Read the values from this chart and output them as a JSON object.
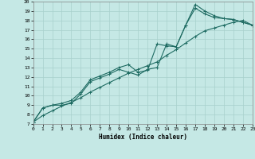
{
  "xlabel": "Humidex (Indice chaleur)",
  "xlim": [
    0,
    23
  ],
  "ylim": [
    7,
    20
  ],
  "xticks": [
    0,
    1,
    2,
    3,
    4,
    5,
    6,
    7,
    8,
    9,
    10,
    11,
    12,
    13,
    14,
    15,
    16,
    17,
    18,
    19,
    20,
    21,
    22,
    23
  ],
  "yticks": [
    7,
    8,
    9,
    10,
    11,
    12,
    13,
    14,
    15,
    16,
    17,
    18,
    19,
    20
  ],
  "background_color": "#c5e8e5",
  "line_color": "#1e6b62",
  "grid_color": "#a8d0cc",
  "line1_x": [
    0,
    1,
    2,
    3,
    4,
    5,
    6,
    7,
    8,
    9,
    10,
    11,
    12,
    13,
    14,
    15,
    16,
    17,
    18,
    19,
    20,
    21,
    22,
    23
  ],
  "line1_y": [
    7.2,
    8.7,
    9.0,
    9.2,
    9.5,
    10.4,
    11.7,
    12.1,
    12.5,
    13.0,
    13.3,
    12.5,
    12.7,
    15.5,
    15.3,
    15.2,
    17.5,
    19.7,
    19.0,
    18.5,
    18.2,
    18.1,
    17.8,
    17.5
  ],
  "line2_x": [
    0,
    1,
    2,
    3,
    4,
    5,
    6,
    7,
    8,
    9,
    10,
    11,
    12,
    13,
    14,
    15,
    16,
    17,
    18,
    19,
    20,
    21,
    22,
    23
  ],
  "line2_y": [
    7.2,
    8.7,
    9.0,
    9.0,
    9.2,
    10.2,
    11.5,
    11.9,
    12.3,
    12.8,
    12.5,
    12.2,
    12.8,
    13.0,
    15.5,
    15.2,
    17.5,
    19.3,
    18.7,
    18.3,
    18.2,
    18.1,
    17.8,
    17.5
  ],
  "line3_x": [
    0,
    1,
    2,
    3,
    4,
    5,
    6,
    7,
    8,
    9,
    10,
    11,
    12,
    13,
    14,
    15,
    16,
    17,
    18,
    19,
    20,
    21,
    22,
    23
  ],
  "line3_y": [
    7.2,
    7.9,
    8.4,
    8.9,
    9.3,
    9.8,
    10.4,
    10.9,
    11.4,
    11.9,
    12.4,
    12.8,
    13.2,
    13.6,
    14.3,
    14.9,
    15.6,
    16.3,
    16.9,
    17.2,
    17.5,
    17.8,
    18.0,
    17.5
  ]
}
